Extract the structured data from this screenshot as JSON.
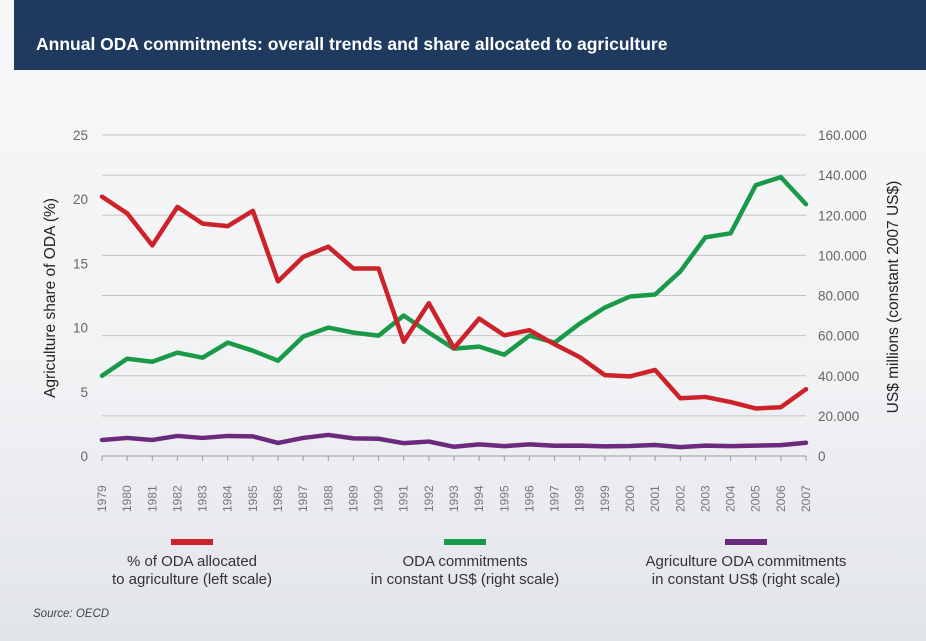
{
  "header": {
    "title": "Annual ODA commitments: overall trends and share allocated to agriculture"
  },
  "chart_data": {
    "type": "line",
    "x": [
      "1979",
      "1980",
      "1981",
      "1982",
      "1983",
      "1984",
      "1985",
      "1986",
      "1987",
      "1988",
      "1989",
      "1990",
      "1991",
      "1992",
      "1993",
      "1994",
      "1995",
      "1996",
      "1997",
      "1998",
      "1999",
      "2000",
      "2001",
      "2002",
      "2003",
      "2004",
      "2005",
      "2006",
      "2007"
    ],
    "left_axis": {
      "label": "Agriculture share of ODA (%)",
      "ylim": [
        0,
        25
      ],
      "ticks": [
        "0",
        "5",
        "10",
        "15",
        "20",
        "25"
      ]
    },
    "right_axis": {
      "label": "US$ millions (constant 2007 US$)",
      "ylim": [
        0,
        160000
      ],
      "ticks": [
        "0",
        "20.000",
        "40.000",
        "60.000",
        "80.000",
        "100.000",
        "120.000",
        "140.000",
        "160.000"
      ]
    },
    "grid": true,
    "series": [
      {
        "name": "% of ODA allocated to agriculture (left scale)",
        "axis": "left",
        "color": "#cc2229",
        "values": [
          20.2,
          18.9,
          16.4,
          19.4,
          18.1,
          17.9,
          19.1,
          13.6,
          15.5,
          16.3,
          14.6,
          14.6,
          8.9,
          11.9,
          8.4,
          10.7,
          9.4,
          9.8,
          8.7,
          7.7,
          6.3,
          6.2,
          6.7,
          4.5,
          4.6,
          4.2,
          3.7,
          3.8,
          5.2
        ]
      },
      {
        "name": "ODA commitments in constant US$ (right scale)",
        "axis": "right",
        "color": "#1a9a48",
        "values": [
          40000,
          48500,
          47000,
          51500,
          49000,
          56500,
          52500,
          47500,
          59500,
          64000,
          61500,
          60000,
          70000,
          61500,
          53500,
          54500,
          50500,
          60000,
          56500,
          66000,
          74000,
          79500,
          80500,
          92000,
          109000,
          111000,
          135000,
          139000,
          125500
        ]
      },
      {
        "name": "Agriculture ODA commitments in constant US$ (right scale)",
        "axis": "right",
        "color": "#6b2a7e",
        "values": [
          8000,
          9000,
          8000,
          10000,
          9000,
          10000,
          9800,
          6500,
          9000,
          10500,
          8800,
          8600,
          6400,
          7200,
          4600,
          5800,
          4900,
          5800,
          5100,
          5200,
          4800,
          5000,
          5500,
          4400,
          5200,
          4900,
          5200,
          5400,
          6600
        ]
      }
    ]
  },
  "legend": [
    {
      "line1": "% of ODA allocated",
      "line2": "to agriculture (left scale)",
      "color": "#cc2229"
    },
    {
      "line1": "ODA commitments",
      "line2": "in constant US$ (right scale)",
      "color": "#1a9a48"
    },
    {
      "line1": "Agriculture ODA commitments",
      "line2": "in constant US$ (right scale)",
      "color": "#6b2a7e"
    }
  ],
  "source": "Source: OECD"
}
